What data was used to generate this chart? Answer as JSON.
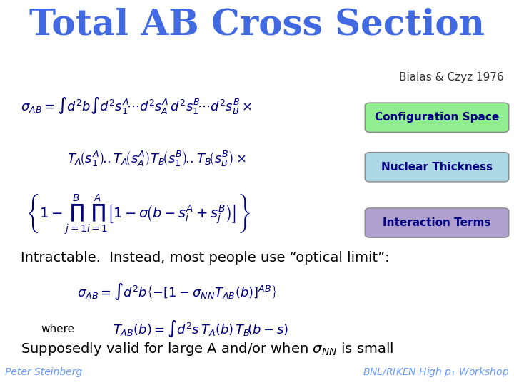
{
  "title": "Total AB Cross Section",
  "title_color": "#4169E1",
  "title_bg": "#00008B",
  "title_fontsize": 36,
  "subtitle": "Bialas & Czyz 1976",
  "subtitle_color": "#333333",
  "subtitle_fontsize": 11,
  "body_bg": "#FFFFFF",
  "footer_bg": "#00008B",
  "footer_left": "Peter Steinberg",
  "footer_right": "BNL/RIKEN High $p_T$ Workshop",
  "footer_color": "#6699FF",
  "footer_fontsize": 10,
  "label_config": "Configuration Space",
  "label_thickness": "Nuclear Thickness",
  "label_interact": "Interaction Terms",
  "label_config_bg": "#90EE90",
  "label_thickness_bg": "#ADD8E6",
  "label_interact_bg": "#B0A0D0",
  "eq1": "$\\sigma_{AB} = \\int d^2b \\int d^2s_1^A \\!\\cdots d^2s_A^A d^2s_1^B \\!\\cdots d^2s_B^B \\times$",
  "eq2": "$T_A\\!\\left(s_1^A\\right)\\!.\\!.T_A\\!\\left(s_A^A\\right)T_B\\!\\left(s_1^B\\right)\\!.\\!.T_B\\!\\left(s_B^B\\right)\\times$",
  "eq3": "$\\left\\{1 - \\prod_{j=1}^{B}\\prod_{i=1}^{A}\\left[1 - \\sigma\\!\\left(b - s_i^A + s_j^B\\right)\\right]\\right\\}$",
  "intractable_text": "Intractable.  Instead, most people use “optical limit”:",
  "eq4": "$\\sigma_{AB} = \\int d^2b\\left\\{-\\left[1 - \\sigma_{NN} T_{AB}(b)\\right]^{AB}\\right\\}$",
  "where_label": "where",
  "eq5": "$T_{AB}(b) = \\int d^2s\\, T_A(b)\\, T_B\\!\\left(b - s\\right)$",
  "supposedly_text": "Supposedly valid for large A and/or when $\\sigma_{NN}$ is small",
  "text_color": "#000000",
  "eq_fontsize": 13,
  "intractable_fontsize": 14,
  "supposedly_fontsize": 14
}
